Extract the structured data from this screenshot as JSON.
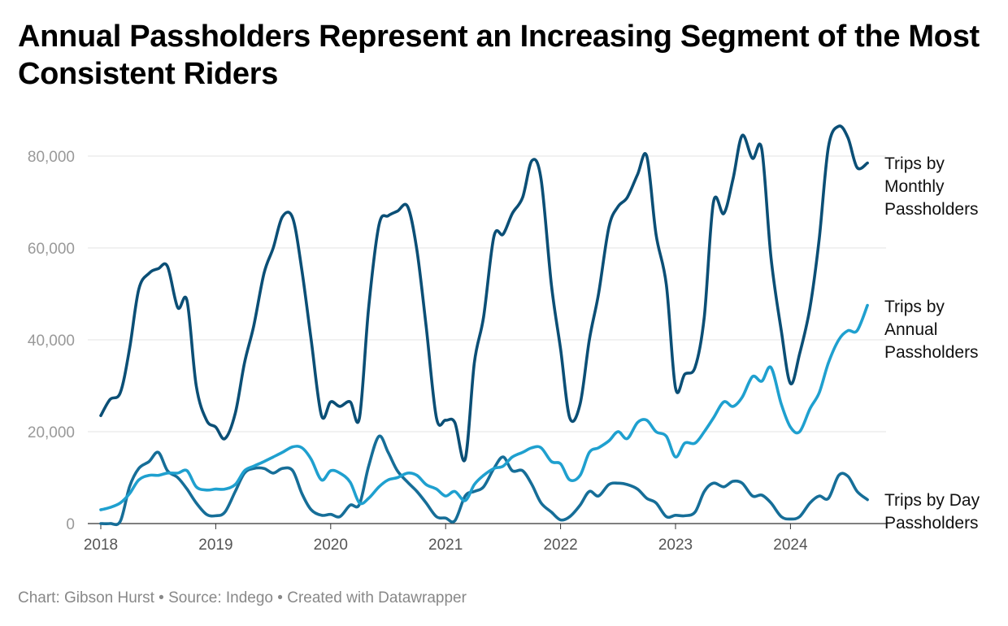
{
  "title": "Annual Passholders Represent an Increasing Segment of the Most Consistent Riders",
  "footer": {
    "chart_credit": "Chart: Gibson Hurst",
    "separator": " • ",
    "source": "Source: Indego",
    "created_with": "Created with Datawrapper"
  },
  "chart_data": {
    "type": "line",
    "x_unit": "year (fractional)",
    "xlim": [
      2018,
      2024.7
    ],
    "ylim": [
      0,
      85000
    ],
    "y_ticks": [
      0,
      20000,
      40000,
      60000,
      80000
    ],
    "y_tick_labels": [
      "0",
      "20,000",
      "40,000",
      "60,000",
      "80,000"
    ],
    "x_ticks": [
      2018,
      2019,
      2020,
      2021,
      2022,
      2023,
      2024
    ],
    "x_tick_labels": [
      "2018",
      "2019",
      "2020",
      "2021",
      "2022",
      "2023",
      "2024"
    ],
    "grid": true,
    "legend": "direct labels at right end of lines",
    "series": [
      {
        "name": "Trips by Monthly Passholders",
        "label_lines": [
          "Trips by",
          "Monthly",
          "Passholders"
        ],
        "color": "#0b4f76",
        "points": [
          [
            2018.0,
            23500
          ],
          [
            2018.08,
            27000
          ],
          [
            2018.17,
            28500
          ],
          [
            2018.25,
            38000
          ],
          [
            2018.33,
            51000
          ],
          [
            2018.42,
            54500
          ],
          [
            2018.5,
            55500
          ],
          [
            2018.58,
            56000
          ],
          [
            2018.67,
            47000
          ],
          [
            2018.75,
            48500
          ],
          [
            2018.83,
            30000
          ],
          [
            2018.92,
            22500
          ],
          [
            2019.0,
            21000
          ],
          [
            2019.08,
            18500
          ],
          [
            2019.17,
            24000
          ],
          [
            2019.25,
            35000
          ],
          [
            2019.33,
            43000
          ],
          [
            2019.42,
            54500
          ],
          [
            2019.5,
            60000
          ],
          [
            2019.58,
            66800
          ],
          [
            2019.67,
            66500
          ],
          [
            2019.75,
            55000
          ],
          [
            2019.83,
            40000
          ],
          [
            2019.92,
            23500
          ],
          [
            2020.0,
            26500
          ],
          [
            2020.08,
            25500
          ],
          [
            2020.17,
            26500
          ],
          [
            2020.25,
            23000
          ],
          [
            2020.33,
            47000
          ],
          [
            2020.42,
            65000
          ],
          [
            2020.5,
            67000
          ],
          [
            2020.58,
            68000
          ],
          [
            2020.67,
            69000
          ],
          [
            2020.75,
            59500
          ],
          [
            2020.83,
            43000
          ],
          [
            2020.92,
            23000
          ],
          [
            2021.0,
            22500
          ],
          [
            2021.08,
            22000
          ],
          [
            2021.17,
            14000
          ],
          [
            2021.25,
            35000
          ],
          [
            2021.33,
            45000
          ],
          [
            2021.42,
            62500
          ],
          [
            2021.5,
            63000
          ],
          [
            2021.58,
            67500
          ],
          [
            2021.67,
            71000
          ],
          [
            2021.75,
            79000
          ],
          [
            2021.83,
            75000
          ],
          [
            2021.92,
            52000
          ],
          [
            2022.0,
            38000
          ],
          [
            2022.08,
            23000
          ],
          [
            2022.17,
            26000
          ],
          [
            2022.25,
            40000
          ],
          [
            2022.33,
            50000
          ],
          [
            2022.42,
            64500
          ],
          [
            2022.5,
            69000
          ],
          [
            2022.58,
            71000
          ],
          [
            2022.67,
            76000
          ],
          [
            2022.75,
            80000
          ],
          [
            2022.83,
            63000
          ],
          [
            2022.92,
            52000
          ],
          [
            2023.0,
            29500
          ],
          [
            2023.08,
            32500
          ],
          [
            2023.17,
            34000
          ],
          [
            2023.25,
            45000
          ],
          [
            2023.33,
            70000
          ],
          [
            2023.42,
            67500
          ],
          [
            2023.5,
            75000
          ],
          [
            2023.58,
            84500
          ],
          [
            2023.67,
            79500
          ],
          [
            2023.75,
            81500
          ],
          [
            2023.83,
            58000
          ],
          [
            2023.92,
            42000
          ],
          [
            2024.0,
            30500
          ],
          [
            2024.08,
            37000
          ],
          [
            2024.17,
            47000
          ],
          [
            2024.25,
            62000
          ],
          [
            2024.33,
            82000
          ],
          [
            2024.42,
            86500
          ],
          [
            2024.5,
            84000
          ],
          [
            2024.58,
            77500
          ],
          [
            2024.67,
            78500
          ]
        ]
      },
      {
        "name": "Trips by Annual Passholders",
        "label_lines": [
          "Trips by",
          "Annual",
          "Passholders"
        ],
        "color": "#1fa0cf",
        "points": [
          [
            2018.0,
            3000
          ],
          [
            2018.08,
            3500
          ],
          [
            2018.17,
            4500
          ],
          [
            2018.25,
            6500
          ],
          [
            2018.33,
            9500
          ],
          [
            2018.42,
            10500
          ],
          [
            2018.5,
            10500
          ],
          [
            2018.58,
            11000
          ],
          [
            2018.67,
            11000
          ],
          [
            2018.75,
            11500
          ],
          [
            2018.83,
            8000
          ],
          [
            2018.92,
            7300
          ],
          [
            2019.0,
            7500
          ],
          [
            2019.08,
            7500
          ],
          [
            2019.17,
            8500
          ],
          [
            2019.25,
            11500
          ],
          [
            2019.33,
            12500
          ],
          [
            2019.42,
            13500
          ],
          [
            2019.5,
            14500
          ],
          [
            2019.58,
            15500
          ],
          [
            2019.67,
            16700
          ],
          [
            2019.75,
            16500
          ],
          [
            2019.83,
            14000
          ],
          [
            2019.92,
            9500
          ],
          [
            2020.0,
            11500
          ],
          [
            2020.08,
            11000
          ],
          [
            2020.17,
            9000
          ],
          [
            2020.25,
            4500
          ],
          [
            2020.33,
            5500
          ],
          [
            2020.42,
            8000
          ],
          [
            2020.5,
            9500
          ],
          [
            2020.58,
            10000
          ],
          [
            2020.67,
            11000
          ],
          [
            2020.75,
            10500
          ],
          [
            2020.83,
            8500
          ],
          [
            2020.92,
            7500
          ],
          [
            2021.0,
            6000
          ],
          [
            2021.08,
            7000
          ],
          [
            2021.17,
            5000
          ],
          [
            2021.25,
            8500
          ],
          [
            2021.33,
            10500
          ],
          [
            2021.42,
            12000
          ],
          [
            2021.5,
            12500
          ],
          [
            2021.58,
            14500
          ],
          [
            2021.67,
            15500
          ],
          [
            2021.75,
            16500
          ],
          [
            2021.83,
            16500
          ],
          [
            2021.92,
            13500
          ],
          [
            2022.0,
            13000
          ],
          [
            2022.08,
            9500
          ],
          [
            2022.17,
            10500
          ],
          [
            2022.25,
            15500
          ],
          [
            2022.33,
            16500
          ],
          [
            2022.42,
            18000
          ],
          [
            2022.5,
            20000
          ],
          [
            2022.58,
            18500
          ],
          [
            2022.67,
            22000
          ],
          [
            2022.75,
            22500
          ],
          [
            2022.83,
            20000
          ],
          [
            2022.92,
            19000
          ],
          [
            2023.0,
            14500
          ],
          [
            2023.08,
            17500
          ],
          [
            2023.17,
            17500
          ],
          [
            2023.25,
            20000
          ],
          [
            2023.33,
            23000
          ],
          [
            2023.42,
            26500
          ],
          [
            2023.5,
            25500
          ],
          [
            2023.58,
            27500
          ],
          [
            2023.67,
            32000
          ],
          [
            2023.75,
            31000
          ],
          [
            2023.83,
            34000
          ],
          [
            2023.92,
            26000
          ],
          [
            2024.0,
            21000
          ],
          [
            2024.08,
            20000
          ],
          [
            2024.17,
            25000
          ],
          [
            2024.25,
            28500
          ],
          [
            2024.33,
            35000
          ],
          [
            2024.42,
            40000
          ],
          [
            2024.5,
            42000
          ],
          [
            2024.58,
            42000
          ],
          [
            2024.67,
            47500
          ]
        ]
      },
      {
        "name": "Trips by Day Passholders",
        "label_lines": [
          "Trips by Day",
          "Passholders"
        ],
        "color": "#166e98",
        "points": [
          [
            2018.0,
            0
          ],
          [
            2018.08,
            0
          ],
          [
            2018.17,
            500
          ],
          [
            2018.25,
            8000
          ],
          [
            2018.33,
            12000
          ],
          [
            2018.42,
            13500
          ],
          [
            2018.5,
            15500
          ],
          [
            2018.58,
            11500
          ],
          [
            2018.67,
            10000
          ],
          [
            2018.75,
            7500
          ],
          [
            2018.83,
            4500
          ],
          [
            2018.92,
            2000
          ],
          [
            2019.0,
            1700
          ],
          [
            2019.08,
            2500
          ],
          [
            2019.17,
            7000
          ],
          [
            2019.25,
            11000
          ],
          [
            2019.33,
            12000
          ],
          [
            2019.42,
            12000
          ],
          [
            2019.5,
            11000
          ],
          [
            2019.58,
            12000
          ],
          [
            2019.67,
            11500
          ],
          [
            2019.75,
            6500
          ],
          [
            2019.83,
            3000
          ],
          [
            2019.92,
            1800
          ],
          [
            2020.0,
            2000
          ],
          [
            2020.08,
            1500
          ],
          [
            2020.17,
            4000
          ],
          [
            2020.25,
            4200
          ],
          [
            2020.33,
            12500
          ],
          [
            2020.42,
            19000
          ],
          [
            2020.5,
            15500
          ],
          [
            2020.58,
            11500
          ],
          [
            2020.67,
            9000
          ],
          [
            2020.75,
            7000
          ],
          [
            2020.83,
            4500
          ],
          [
            2020.92,
            1500
          ],
          [
            2021.0,
            1200
          ],
          [
            2021.08,
            600
          ],
          [
            2021.17,
            6000
          ],
          [
            2021.25,
            7000
          ],
          [
            2021.33,
            8000
          ],
          [
            2021.42,
            12000
          ],
          [
            2021.5,
            14500
          ],
          [
            2021.58,
            11500
          ],
          [
            2021.67,
            11500
          ],
          [
            2021.75,
            8500
          ],
          [
            2021.83,
            4500
          ],
          [
            2021.92,
            2500
          ],
          [
            2022.0,
            800
          ],
          [
            2022.08,
            1500
          ],
          [
            2022.17,
            4000
          ],
          [
            2022.25,
            7000
          ],
          [
            2022.33,
            6000
          ],
          [
            2022.42,
            8500
          ],
          [
            2022.5,
            8800
          ],
          [
            2022.58,
            8500
          ],
          [
            2022.67,
            7500
          ],
          [
            2022.75,
            5500
          ],
          [
            2022.83,
            4500
          ],
          [
            2022.92,
            1500
          ],
          [
            2023.0,
            1800
          ],
          [
            2023.08,
            1700
          ],
          [
            2023.17,
            2500
          ],
          [
            2023.25,
            7000
          ],
          [
            2023.33,
            8800
          ],
          [
            2023.42,
            8000
          ],
          [
            2023.5,
            9200
          ],
          [
            2023.58,
            8800
          ],
          [
            2023.67,
            6000
          ],
          [
            2023.75,
            6200
          ],
          [
            2023.83,
            4500
          ],
          [
            2023.92,
            1500
          ],
          [
            2024.0,
            1000
          ],
          [
            2024.08,
            1500
          ],
          [
            2024.17,
            4500
          ],
          [
            2024.25,
            6000
          ],
          [
            2024.33,
            5500
          ],
          [
            2024.42,
            10500
          ],
          [
            2024.5,
            10300
          ],
          [
            2024.58,
            7000
          ],
          [
            2024.67,
            5200
          ]
        ]
      }
    ]
  }
}
